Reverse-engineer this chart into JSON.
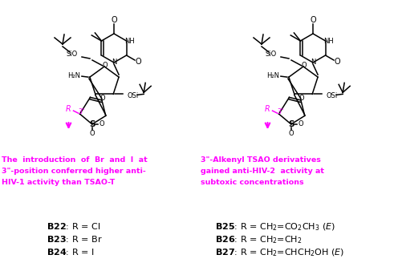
{
  "background_color": "#ffffff",
  "magenta": "#FF00FF",
  "black": "#000000",
  "figsize": [
    4.96,
    3.38
  ],
  "dpi": 100,
  "left_caption_lines": [
    "The  introduction  of  Br  and  I  at",
    "3\"-position conferred higher anti-",
    "HIV-1 activity than TSAO-T"
  ],
  "right_caption_lines": [
    "3\"-Alkenyl TSAO derivatives",
    "gained anti-HIV-2  activity at",
    "subtoxic concentrations"
  ],
  "left_compounds": [
    "\\mathbf{B22}: R = Cl",
    "\\mathbf{B23}: R = Br",
    "\\mathbf{B24}: R = I"
  ],
  "right_compounds": [
    "\\mathbf{B25}: R = CH$_2$=CO$_2$CH$_3$ (\\textit{E})",
    "\\mathbf{B26}: R = CH$_2$=CH$_2$",
    "\\mathbf{B27}: R = CH$_2$=CHCH$_2$OH (\\textit{E})"
  ]
}
